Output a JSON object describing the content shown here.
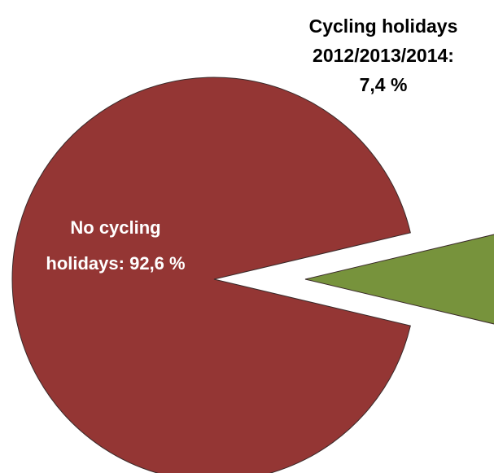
{
  "chart_data": {
    "type": "pie",
    "categories": [
      "No cycling holidays:",
      "Cycling holidays 2012/2013/2014:"
    ],
    "values": [
      92.6,
      7.4
    ],
    "value_labels": [
      "92,6 %",
      "7,4 %"
    ],
    "colors": [
      "#943634",
      "#77933c"
    ]
  }
}
